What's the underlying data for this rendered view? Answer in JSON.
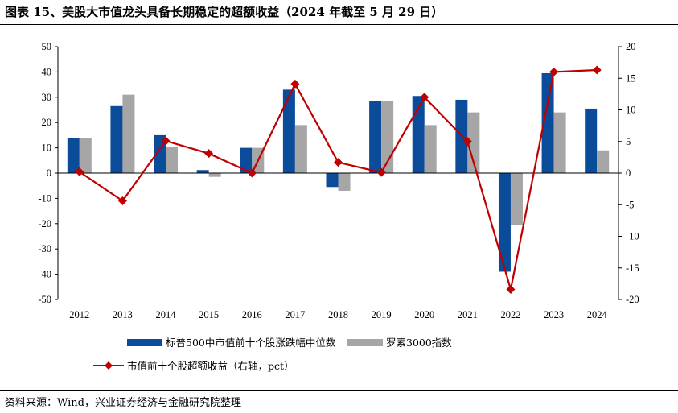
{
  "title": "图表 15、美股大市值龙头具备长期稳定的超额收益（2024 年截至 5 月 29 日）",
  "source": "资料来源：Wind，兴业证券经济与金融研究院整理",
  "colors": {
    "series1": "#0B4C9A",
    "series2": "#A6A6A6",
    "line": "#C00000",
    "axis": "#000000"
  },
  "chart_data": {
    "type": "bar",
    "categories": [
      "2012",
      "2013",
      "2014",
      "2015",
      "2016",
      "2017",
      "2018",
      "2019",
      "2020",
      "2021",
      "2022",
      "2023",
      "2024"
    ],
    "left_axis": {
      "min": -50,
      "max": 50,
      "step": 10,
      "ticks": [
        "50",
        "40",
        "30",
        "20",
        "10",
        "0",
        "-10",
        "-20",
        "-30",
        "-40",
        "-50"
      ]
    },
    "right_axis": {
      "min": -20,
      "max": 20,
      "step": 5,
      "ticks": [
        "20",
        "15",
        "10",
        "5",
        "0",
        "-5",
        "-10",
        "-15",
        "-20"
      ]
    },
    "series": [
      {
        "name": "标普500中市值前十个股涨跌幅中位数",
        "kind": "bar",
        "axis": "left",
        "values": [
          14,
          26.5,
          15,
          1.2,
          10,
          33,
          -5.5,
          28.5,
          30.5,
          29,
          -39,
          39.5,
          25.5
        ]
      },
      {
        "name": "罗素3000指数",
        "kind": "bar",
        "axis": "left",
        "values": [
          14,
          31,
          10.5,
          -1.5,
          10,
          19,
          -7,
          28.5,
          19,
          24,
          -20.5,
          24,
          9
        ]
      },
      {
        "name": "市值前十个股超额收益（右轴，pct）",
        "kind": "line",
        "axis": "right",
        "values": [
          0.2,
          -4.4,
          5.1,
          3.1,
          0,
          14.1,
          1.7,
          0.1,
          12,
          5,
          -18.4,
          16,
          16.3
        ]
      }
    ]
  }
}
